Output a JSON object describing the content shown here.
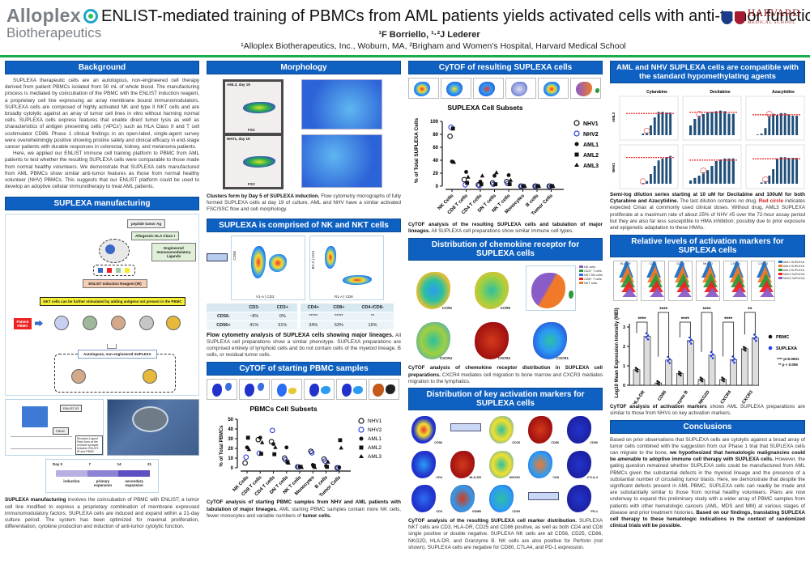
{
  "header": {
    "logo_left_line1": "Alloplex",
    "logo_left_line2": "Biotherapeutics",
    "title": "ENLIST-mediated training of PBMCs from AML patients yields activated cells with anti-tumor function",
    "authors": "¹F Borriello, ¹·²J Lederer",
    "affiliations": "¹Alloplex Biotherapeutics, Inc., Woburn, MA, ²Brigham and Women's Hospital, Harvard Medical School",
    "logo_right_main": "HARVARD",
    "logo_right_sub": "MEDICAL SCHOOL",
    "colors": {
      "section_header": "#0f61c1",
      "divider": "#1aab4b"
    }
  },
  "background": {
    "heading": "Background",
    "p1": "SUPLEXA therapeutic cells are an autologous, non-engineered cell therapy derived from patient PBMCs isolated from 50 mL of whole blood. The manufacturing process is mediated by coincubation of the PBMC with the ENLIST induction reagent, a proprietary cell line expressing an array membrane bound immunomodulators. SUPLEXA cells are composed of highly activated NK and type II NKT cells and are broadly cytolytic against an array of tumor cell lines in vitro without harming normal cells. SUPLEXA cells express features that enable direct tumor lysis as well as characteristics of antigen presenting cells ('APCs') such as HLA Class II and T cell costimulator CD86. Phase 1 clinical findings in an open-label, single-agent survey were overwhelmingly positive showing pristine safety and clinical efficacy in end-stage cancer patients with durable responses in colorectal, kidney, and melanoma patients.",
    "p2": "Here, we applied our ENLIST immune cell training platform to PBMC from AML patients to test whether the resulting SUPLEXA cells were comparable to those made from normal healthy volunteers. We demonstrate that SUPLEXA cells manufactured from AML PBMCs show similar anti-tumor features as those from normal healthy volunteer (NHV) PBMCs. This suggests that our ENLIST platform could be used to develop an adoptive cellular immunotherapy to treat AML patients."
  },
  "manufacturing": {
    "heading": "SUPLEXA manufacturing",
    "diagram": {
      "peptide": "peptide tumor Ag",
      "hla": "Allogeneic HLA Class I",
      "ligands": "Engineered Immunomodulatory Ligands",
      "reagent": "ENLIST Induction Reagent (IR)",
      "nkt_note": "NKT cells can be further stimulated by adding antigens not present in the PBMC",
      "patient": "Patient PBMC",
      "cells": [
        "T cell",
        "Monocyte",
        "NK cell",
        "B cell",
        "NKT cell"
      ],
      "result": "Autologous, non-engineered SUPLEXA",
      "enlist_label": "ENLIST-IR",
      "pbmc_label": "PBMC",
      "synapse_note": "Receptor-Ligand Pairs form at the immune synapse between ENLIST-IR and PBMC"
    },
    "timeline": {
      "days": [
        "Day 0",
        "7",
        "14",
        "21"
      ],
      "phases": [
        "induction",
        "primary expansion",
        "secondary expansion"
      ]
    },
    "caption_bold": "SUPLEXA manufacturing",
    "caption": " involves the coincubation of PBMC with ENLIST; a tumor cell line modified to express a proprietary combination of membrane expressed immunomodulatory factors. SUPLEXA cells are induced and expand within a 21-day culture period. The system has been optimized for maximal proliferation, differentiation, cytokine production and induction of anti-tumor cytolytic function."
  },
  "morphology": {
    "heading": "Morphology",
    "plot1_label": "AML3, day 19",
    "plot2_label": "NHV1, day 19",
    "axis_x": "FSC",
    "axis_y": "SSC",
    "caption_bold": "Clusters form by Day 5 of SUPLEXA induction.",
    "caption": " Flow cytometry micrographs of fully formed SUPLEXA cells at day 19 of culture. AML and NHV have a similar activated FSC/SSC flow and cell morphology."
  },
  "nk_nkt": {
    "heading": "SUPLEXA is comprised of NK and NKT cells",
    "plot1_x": "V1-A | CD3",
    "plot1_y": "CD56",
    "plot2_x": "R1-A | CD8",
    "plot2_y": "B2-A | CD4",
    "table1": {
      "headers": [
        "",
        "CD3-",
        "CD3+"
      ],
      "rows": [
        [
          "CD56-",
          "~8%",
          "0%"
        ],
        [
          "CD56+",
          "41%",
          "51%"
        ]
      ]
    },
    "table2": {
      "headers": [
        "CD4+",
        "CD8+",
        "CD4-/CD8-"
      ],
      "rows": [
        [
          "*****",
          "*****",
          "**"
        ],
        [
          "34%",
          "53%",
          "16%"
        ]
      ]
    },
    "caption_bold": "Flow cytometry analysis of SUPLEXA cells showing major lineages.",
    "caption": " All SUPLEXA cell preparations show a similar phenotype. SUPLEXA preparations are comprised entirely of lymphoid cells and do not contain cells of the myeloid lineage, B cells, or residual tumor cells."
  },
  "pbmc_cytof": {
    "heading": "CyTOF of starting PBMC samples",
    "caption_bold": "CyTOF analysis of starting PBMC samples from NHV and AML patients with tabulation of major lineages.",
    "caption": " AML starting PBMC samples contain more NK cells, fewer monocytes and variable numbers of ",
    "caption_end": "tumor cells."
  },
  "suplexa_cytof": {
    "heading": "CyTOF of resulting SUPLEXA cells",
    "caption_bold": "CyTOF analysis of the resulting SUPLEXA cells and tabulation of major lineages.",
    "caption": " All SUPLEXA cell preparations show similar immune cell types."
  },
  "chemokine": {
    "heading": "Distribution of chemokine receptor for SUPLEXA cells",
    "panels": [
      "CCR2",
      "CCR5",
      "CXCR4",
      "CXCR3",
      "CXCR1"
    ],
    "legend": [
      "NK cells",
      "CD4+ T cells",
      "NKT DN cells",
      "CD8+ T cells",
      "NKT cells"
    ],
    "caption_bold": "CyTOF analysis of chemokine receptor distribution in SUPLEXA cell preparations.",
    "caption": " CXCR4 mediates cell migration to bone marrow and CXCR3 mediates migration to the lymphatics."
  },
  "activation_dist": {
    "heading": "Distribution of key activation markers for SUPLEXA cells",
    "panels": [
      "CD56",
      "CD25",
      "CD86",
      "CD80",
      "CD4",
      "HLA-DR",
      "NKG2D",
      "CD8",
      "CTLA-4",
      "CD3",
      "GZMB",
      "CD69",
      "PD-1"
    ],
    "caption_bold": "CyTOF analysis of the resulting SUPLEXA cell marker distribution.",
    "caption": " SUPLEXA NKT cells are CD3, HLA-DR, CD25 and CD86 positive, as well as both CD4 and CD8 single positive or double negative. SUPLEXA NK cells are all CD56, CD25, CD86, NKG2D, HLA-DR, and Granzyme B. NK cells are also positive for Perforin (not shown). SUPLEXA cells are negative for CD80, CTLA4, and PD-1 expression."
  },
  "hma": {
    "heading": "AML and NHV SUPLEXA cells are compatible with the standard hypomethylating agents",
    "drugs": [
      "Cytarabine",
      "Decitabine",
      "Azacytidine"
    ],
    "rows": [
      "AML3",
      "NHV1"
    ],
    "caption_bold": "Semi-log dilution series starting at 10 uM for Decitabine and 100uM for both Cytarabine and Azacytidine.",
    "caption_a": " The last dilution contains no drug. ",
    "caption_red": "Red circle",
    "caption_b": " indicates expected Cmax at commonly used clinical doses. Without drug, AML3 SUPLEXA proliferate at a maximum rate of about 25% of NHV #5 over the 72-hour assay period but they are also far less susceptible to HMA inhibition; possibly due to prior exposure and epigenetic adaptation to these HMAs."
  },
  "relative": {
    "heading": "Relative levels of activation markers for SUPLEXA cells",
    "histo_labels": [
      "HLA-DR",
      "CD86",
      "GZMB",
      "NKG2D",
      "CXCR4",
      "CXCR3"
    ],
    "histo_legend": [
      "AML1 SUPLEXA",
      "AML2 SUPLEXA",
      "AML3 SUPLEXA",
      "NHV1 SUPLEXA",
      "NHV2 SUPLEXA"
    ],
    "legend_pbmc": "PBMC",
    "legend_suplexa": "SUPLEXA",
    "sig1": "**** p<0.0001",
    "sig2": "** p < 0.005",
    "caption_bold": "CyTOF analysis of activation markers",
    "caption": " shows AML SUPLEXA preparations are similar to those from NHVs on key activation markers."
  },
  "conclusions": {
    "heading": "Conclusions",
    "t1": "Based on prior observations that SUPLEXA cells are cytolytic against a broad array of tumor cells combined with the suggestion from our Phase 1 trial that SUPLEXA cells can migrate to the bone, ",
    "b1": "we hypothesized that hematologic malignancies could be amenable to adoptive immune cell therapy with SUPLEXA cells.",
    "t2": " However, the gating question remained whether SUPLEXA cells could be manufactured from AML PBMCs given the substantial defects in the myeloid lineage and the presence of a substantial number of circulating tumor blasts. Here, we demonstrate that despite the significant defects present in AML PBMC, SUPLEXA cells can readily be made and are substantially similar to those from normal healthy volunteers. Plans are now underway to expand this preliminary study with a wider array of PBMC samples from patients with other hematologic cancers (AML, MDS and MM) at various stages of disease and prior treatment histories. ",
    "b2": "Based on our findings, translating SUPLEXA cell therapy to these hematologic indications in the context of randomized clinical trials will be possible."
  },
  "chart_data": [
    {
      "type": "scatter",
      "title": "PBMCs Cell Subsets",
      "xlabel": "",
      "ylabel": "% of Total PBMCs",
      "ylim": [
        0,
        50
      ],
      "yticks": [
        0,
        10,
        20,
        30,
        40,
        50
      ],
      "categories": [
        "NK Cells",
        "CD8 T cells",
        "CD4 T cells",
        "DN T cells",
        "NK T cells",
        "Monocytes",
        "B cells",
        "Tumor Cells"
      ],
      "series": [
        {
          "name": "NHV1",
          "marker": "open-circle-black",
          "values": [
            5,
            29,
            27,
            10,
            1,
            17,
            9,
            0
          ]
        },
        {
          "name": "NHV2",
          "marker": "open-circle-blue",
          "values": [
            11,
            15,
            38.5,
            8,
            1,
            15.5,
            7,
            0
          ]
        },
        {
          "name": "AML1",
          "marker": "filled-circle",
          "values": [
            21,
            31,
            24.5,
            21,
            1,
            3,
            2,
            0.5
          ]
        },
        {
          "name": "AML2",
          "marker": "filled-square",
          "values": [
            31,
            14.5,
            14,
            6,
            1,
            2,
            1,
            28.5
          ]
        },
        {
          "name": "AML3",
          "marker": "filled-triangle",
          "values": [
            19,
            26,
            21,
            5,
            0.5,
            0.5,
            6,
            20.5
          ]
        }
      ],
      "legend_position": "right"
    },
    {
      "type": "scatter",
      "title": "SUPLEXA Cell Subsets",
      "xlabel": "",
      "ylabel": "% of Total SUPLEXA Cells",
      "ylim": [
        0,
        100
      ],
      "yticks": [
        0,
        20,
        40,
        60,
        80,
        100
      ],
      "categories": [
        "NK Cells",
        "CD8 T cells",
        "CD4 T cells",
        "DN T cells",
        "NK T cells",
        "Monocytes",
        "B cells",
        "Tumor Cells"
      ],
      "series": [
        {
          "name": "NHV1",
          "marker": "open-circle-black",
          "values": [
            77,
            10,
            2,
            5,
            7,
            0,
            0,
            0
          ]
        },
        {
          "name": "NHV2",
          "marker": "open-circle-blue",
          "values": [
            91,
            2,
            1,
            3,
            4,
            0,
            0,
            0
          ]
        },
        {
          "name": "AML1",
          "marker": "filled-circle",
          "values": [
            38,
            22,
            7,
            16,
            17,
            0,
            0,
            0
          ]
        },
        {
          "name": "AML2",
          "marker": "filled-square",
          "values": [
            89,
            5,
            3,
            3,
            3,
            0,
            0,
            0
          ]
        },
        {
          "name": "AML3",
          "marker": "filled-triangle",
          "values": [
            37,
            14,
            16,
            21,
            9,
            0,
            0,
            0
          ]
        }
      ],
      "legend_position": "right"
    },
    {
      "type": "bar",
      "title": "",
      "xlabel": "",
      "ylabel": "Log10 Mean Expression Intensity (MEI)",
      "ylim": [
        0,
        3
      ],
      "yticks": [
        0,
        1,
        2,
        3
      ],
      "categories": [
        "HLA-DR",
        "CD86",
        "Granzyme B",
        "NKG2D",
        "CXCR4",
        "CXCR3"
      ],
      "series": [
        {
          "name": "PBMC",
          "values": [
            0.8,
            0.12,
            0.6,
            0.3,
            0.3,
            1.88
          ]
        },
        {
          "name": "SUPLEXA",
          "values": [
            2.52,
            1.3,
            2.3,
            1.55,
            1.32,
            2.45
          ]
        }
      ],
      "significance": [
        "****",
        "****",
        "****",
        "****",
        "****",
        "**"
      ],
      "legend_position": "right"
    },
    {
      "type": "bar",
      "title": "AML and NHV SUPLEXA cells vs hypomethylating agents (semi-log dilution)",
      "panels": [
        {
          "row": "AML3",
          "drug": "Cytarabine",
          "values": [
            0,
            0,
            0,
            0,
            5,
            8,
            30,
            55,
            72,
            72,
            70,
            70
          ]
        },
        {
          "row": "AML3",
          "drug": "Decitabine",
          "values": [
            30,
            50,
            60,
            65,
            70,
            72,
            74,
            76,
            74,
            66,
            66
          ]
        },
        {
          "row": "AML3",
          "drug": "Azacytidine",
          "values": [
            0,
            2,
            5,
            22,
            60,
            66,
            62,
            68,
            68,
            64,
            60,
            60
          ]
        },
        {
          "row": "NHV1",
          "drug": "Cytarabine",
          "values": [
            0,
            0,
            0,
            0,
            2,
            8,
            30,
            55,
            72,
            78,
            82,
            86
          ]
        },
        {
          "row": "NHV1",
          "drug": "Decitabine",
          "values": [
            10,
            18,
            25,
            35,
            42,
            55,
            70,
            75,
            78,
            78,
            78
          ]
        },
        {
          "row": "NHV1",
          "drug": "Azacytidine",
          "values": [
            0,
            0,
            4,
            8,
            25,
            45,
            78,
            82,
            82,
            80,
            80,
            80
          ]
        }
      ]
    }
  ]
}
